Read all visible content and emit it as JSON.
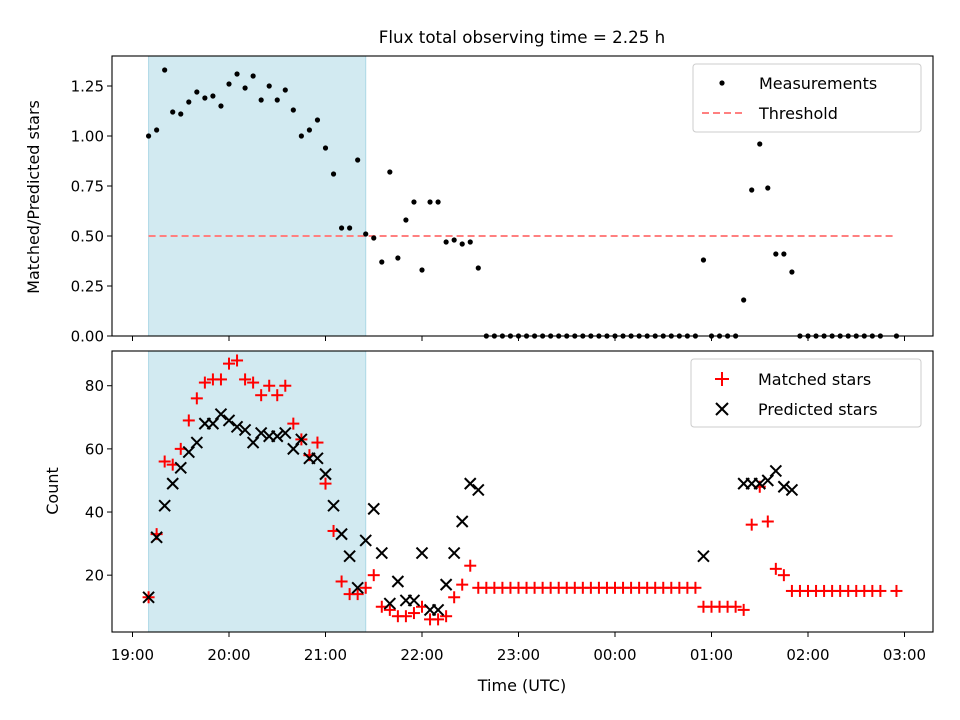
{
  "figure": {
    "title": "Flux total observing time = 2.25 h"
  },
  "chart_data": [
    {
      "type": "scatter",
      "panel": "top",
      "ylabel": "Matched/Predicted stars",
      "xlabel": "",
      "ylim": [
        0,
        1.4
      ],
      "yticks": [
        "0.00",
        "0.25",
        "0.50",
        "0.75",
        "1.00",
        "1.25"
      ],
      "ytick_values": [
        0,
        0.25,
        0.5,
        0.75,
        1.0,
        1.25
      ],
      "xlim": [
        "19:00",
        "03:00"
      ],
      "xtick_labels_shown": false,
      "legend_placement": "top-right",
      "shaded_span": {
        "start": "19:10",
        "end": "21:25",
        "color": "#add8e6"
      },
      "threshold": {
        "name": "Threshold",
        "value": 0.5,
        "start": "19:10",
        "end": "02:55",
        "color": "#ff8080",
        "style": "dashed"
      },
      "series": [
        {
          "name": "Measurements",
          "marker": "dot",
          "color": "#000000",
          "points": [
            [
              "19:10",
              1.0
            ],
            [
              "19:15",
              1.03
            ],
            [
              "19:20",
              1.33
            ],
            [
              "19:25",
              1.12
            ],
            [
              "19:30",
              1.11
            ],
            [
              "19:35",
              1.17
            ],
            [
              "19:40",
              1.22
            ],
            [
              "19:45",
              1.19
            ],
            [
              "19:50",
              1.2
            ],
            [
              "19:55",
              1.15
            ],
            [
              "20:00",
              1.26
            ],
            [
              "20:05",
              1.31
            ],
            [
              "20:10",
              1.24
            ],
            [
              "20:15",
              1.3
            ],
            [
              "20:20",
              1.18
            ],
            [
              "20:25",
              1.25
            ],
            [
              "20:30",
              1.18
            ],
            [
              "20:35",
              1.23
            ],
            [
              "20:40",
              1.13
            ],
            [
              "20:45",
              1.0
            ],
            [
              "20:50",
              1.03
            ],
            [
              "20:55",
              1.08
            ],
            [
              "21:00",
              0.94
            ],
            [
              "21:05",
              0.81
            ],
            [
              "21:10",
              0.54
            ],
            [
              "21:15",
              0.54
            ],
            [
              "21:20",
              0.88
            ],
            [
              "21:25",
              0.51
            ],
            [
              "21:30",
              0.49
            ],
            [
              "21:35",
              0.37
            ],
            [
              "21:40",
              0.82
            ],
            [
              "21:45",
              0.39
            ],
            [
              "21:50",
              0.58
            ],
            [
              "21:55",
              0.67
            ],
            [
              "22:00",
              0.33
            ],
            [
              "22:05",
              0.67
            ],
            [
              "22:10",
              0.67
            ],
            [
              "22:15",
              0.47
            ],
            [
              "22:20",
              0.48
            ],
            [
              "22:25",
              0.46
            ],
            [
              "22:30",
              0.47
            ],
            [
              "22:35",
              0.34
            ],
            [
              "22:40",
              0
            ],
            [
              "22:45",
              0
            ],
            [
              "22:50",
              0
            ],
            [
              "22:55",
              0
            ],
            [
              "23:00",
              0
            ],
            [
              "23:05",
              0
            ],
            [
              "23:10",
              0
            ],
            [
              "23:15",
              0
            ],
            [
              "23:20",
              0
            ],
            [
              "23:25",
              0
            ],
            [
              "23:30",
              0
            ],
            [
              "23:35",
              0
            ],
            [
              "23:40",
              0
            ],
            [
              "23:45",
              0
            ],
            [
              "23:50",
              0
            ],
            [
              "23:55",
              0
            ],
            [
              "00:00",
              0
            ],
            [
              "00:05",
              0
            ],
            [
              "00:10",
              0
            ],
            [
              "00:15",
              0
            ],
            [
              "00:20",
              0
            ],
            [
              "00:25",
              0
            ],
            [
              "00:30",
              0
            ],
            [
              "00:35",
              0
            ],
            [
              "00:40",
              0
            ],
            [
              "00:45",
              0
            ],
            [
              "00:50",
              0
            ],
            [
              "00:55",
              0.38
            ],
            [
              "01:00",
              0
            ],
            [
              "01:05",
              0
            ],
            [
              "01:10",
              0
            ],
            [
              "01:15",
              0
            ],
            [
              "01:20",
              0.18
            ],
            [
              "01:25",
              0.73
            ],
            [
              "01:30",
              0.96
            ],
            [
              "01:35",
              0.74
            ],
            [
              "01:40",
              0.41
            ],
            [
              "01:45",
              0.41
            ],
            [
              "01:50",
              0.32
            ],
            [
              "01:55",
              0
            ],
            [
              "02:00",
              0
            ],
            [
              "02:05",
              0
            ],
            [
              "02:10",
              0
            ],
            [
              "02:15",
              0
            ],
            [
              "02:20",
              0
            ],
            [
              "02:25",
              0
            ],
            [
              "02:30",
              0
            ],
            [
              "02:35",
              0
            ],
            [
              "02:40",
              0
            ],
            [
              "02:45",
              0
            ],
            [
              "02:55",
              0
            ]
          ]
        }
      ]
    },
    {
      "type": "scatter",
      "panel": "bottom",
      "ylabel": "Count",
      "xlabel": "Time (UTC)",
      "ylim": [
        2,
        91
      ],
      "yticks": [
        "20",
        "40",
        "60",
        "80"
      ],
      "ytick_values": [
        20,
        40,
        60,
        80
      ],
      "xlim": [
        "19:00",
        "03:00"
      ],
      "xticks": [
        "19:00",
        "20:00",
        "21:00",
        "22:00",
        "23:00",
        "00:00",
        "01:00",
        "02:00",
        "03:00"
      ],
      "legend_placement": "top-right",
      "shaded_span": {
        "start": "19:10",
        "end": "21:25",
        "color": "#add8e6"
      },
      "series": [
        {
          "name": "Matched stars",
          "marker": "plus",
          "color": "#ff0000",
          "points": [
            [
              "19:10",
              13
            ],
            [
              "19:15",
              33
            ],
            [
              "19:20",
              56
            ],
            [
              "19:25",
              55
            ],
            [
              "19:30",
              60
            ],
            [
              "19:35",
              69
            ],
            [
              "19:40",
              76
            ],
            [
              "19:45",
              81
            ],
            [
              "19:50",
              82
            ],
            [
              "19:55",
              82
            ],
            [
              "20:00",
              87
            ],
            [
              "20:05",
              88
            ],
            [
              "20:10",
              82
            ],
            [
              "20:15",
              81
            ],
            [
              "20:20",
              77
            ],
            [
              "20:25",
              80
            ],
            [
              "20:30",
              77
            ],
            [
              "20:35",
              80
            ],
            [
              "20:40",
              68
            ],
            [
              "20:45",
              63
            ],
            [
              "20:50",
              58
            ],
            [
              "20:55",
              62
            ],
            [
              "21:00",
              49
            ],
            [
              "21:05",
              34
            ],
            [
              "21:10",
              18
            ],
            [
              "21:15",
              14
            ],
            [
              "21:20",
              14
            ],
            [
              "21:25",
              16
            ],
            [
              "21:30",
              20
            ],
            [
              "21:35",
              10
            ],
            [
              "21:40",
              9
            ],
            [
              "21:45",
              7
            ],
            [
              "21:50",
              7
            ],
            [
              "21:55",
              8
            ],
            [
              "22:00",
              10
            ],
            [
              "22:05",
              6
            ],
            [
              "22:10",
              6
            ],
            [
              "22:15",
              7
            ],
            [
              "22:20",
              13
            ],
            [
              "22:25",
              17
            ],
            [
              "22:30",
              23
            ],
            [
              "22:35",
              16
            ],
            [
              "22:40",
              16
            ],
            [
              "22:45",
              16
            ],
            [
              "22:50",
              16
            ],
            [
              "22:55",
              16
            ],
            [
              "23:00",
              16
            ],
            [
              "23:05",
              16
            ],
            [
              "23:10",
              16
            ],
            [
              "23:15",
              16
            ],
            [
              "23:20",
              16
            ],
            [
              "23:25",
              16
            ],
            [
              "23:30",
              16
            ],
            [
              "23:35",
              16
            ],
            [
              "23:40",
              16
            ],
            [
              "23:45",
              16
            ],
            [
              "23:50",
              16
            ],
            [
              "23:55",
              16
            ],
            [
              "00:00",
              16
            ],
            [
              "00:05",
              16
            ],
            [
              "00:10",
              16
            ],
            [
              "00:15",
              16
            ],
            [
              "00:20",
              16
            ],
            [
              "00:25",
              16
            ],
            [
              "00:30",
              16
            ],
            [
              "00:35",
              16
            ],
            [
              "00:40",
              16
            ],
            [
              "00:45",
              16
            ],
            [
              "00:50",
              16
            ],
            [
              "00:55",
              10
            ],
            [
              "01:00",
              10
            ],
            [
              "01:05",
              10
            ],
            [
              "01:10",
              10
            ],
            [
              "01:15",
              10
            ],
            [
              "01:20",
              9
            ],
            [
              "01:25",
              36
            ],
            [
              "01:30",
              48
            ],
            [
              "01:35",
              37
            ],
            [
              "01:40",
              22
            ],
            [
              "01:45",
              20
            ],
            [
              "01:50",
              15
            ],
            [
              "01:55",
              15
            ],
            [
              "02:00",
              15
            ],
            [
              "02:05",
              15
            ],
            [
              "02:10",
              15
            ],
            [
              "02:15",
              15
            ],
            [
              "02:20",
              15
            ],
            [
              "02:25",
              15
            ],
            [
              "02:30",
              15
            ],
            [
              "02:35",
              15
            ],
            [
              "02:40",
              15
            ],
            [
              "02:45",
              15
            ],
            [
              "02:55",
              15
            ]
          ]
        },
        {
          "name": "Predicted stars",
          "marker": "x",
          "color": "#000000",
          "points": [
            [
              "19:10",
              13
            ],
            [
              "19:15",
              32
            ],
            [
              "19:20",
              42
            ],
            [
              "19:25",
              49
            ],
            [
              "19:30",
              54
            ],
            [
              "19:35",
              59
            ],
            [
              "19:40",
              62
            ],
            [
              "19:45",
              68
            ],
            [
              "19:50",
              68
            ],
            [
              "19:55",
              71
            ],
            [
              "20:00",
              69
            ],
            [
              "20:05",
              67
            ],
            [
              "20:10",
              66
            ],
            [
              "20:15",
              62
            ],
            [
              "20:20",
              65
            ],
            [
              "20:25",
              64
            ],
            [
              "20:30",
              64
            ],
            [
              "20:35",
              65
            ],
            [
              "20:40",
              60
            ],
            [
              "20:45",
              63
            ],
            [
              "20:50",
              57
            ],
            [
              "20:55",
              57
            ],
            [
              "21:00",
              52
            ],
            [
              "21:05",
              42
            ],
            [
              "21:10",
              33
            ],
            [
              "21:15",
              26
            ],
            [
              "21:20",
              16
            ],
            [
              "21:25",
              31
            ],
            [
              "21:30",
              41
            ],
            [
              "21:35",
              27
            ],
            [
              "21:40",
              11
            ],
            [
              "21:45",
              18
            ],
            [
              "21:50",
              12
            ],
            [
              "21:55",
              12
            ],
            [
              "22:00",
              27
            ],
            [
              "22:05",
              9
            ],
            [
              "22:10",
              9
            ],
            [
              "22:15",
              17
            ],
            [
              "22:20",
              27
            ],
            [
              "22:25",
              37
            ],
            [
              "22:30",
              49
            ],
            [
              "22:35",
              47
            ],
            [
              "00:55",
              26
            ],
            [
              "01:20",
              49
            ],
            [
              "01:25",
              49
            ],
            [
              "01:30",
              49
            ],
            [
              "01:35",
              50
            ],
            [
              "01:40",
              53
            ],
            [
              "01:45",
              48
            ],
            [
              "01:50",
              47
            ]
          ]
        }
      ]
    }
  ]
}
